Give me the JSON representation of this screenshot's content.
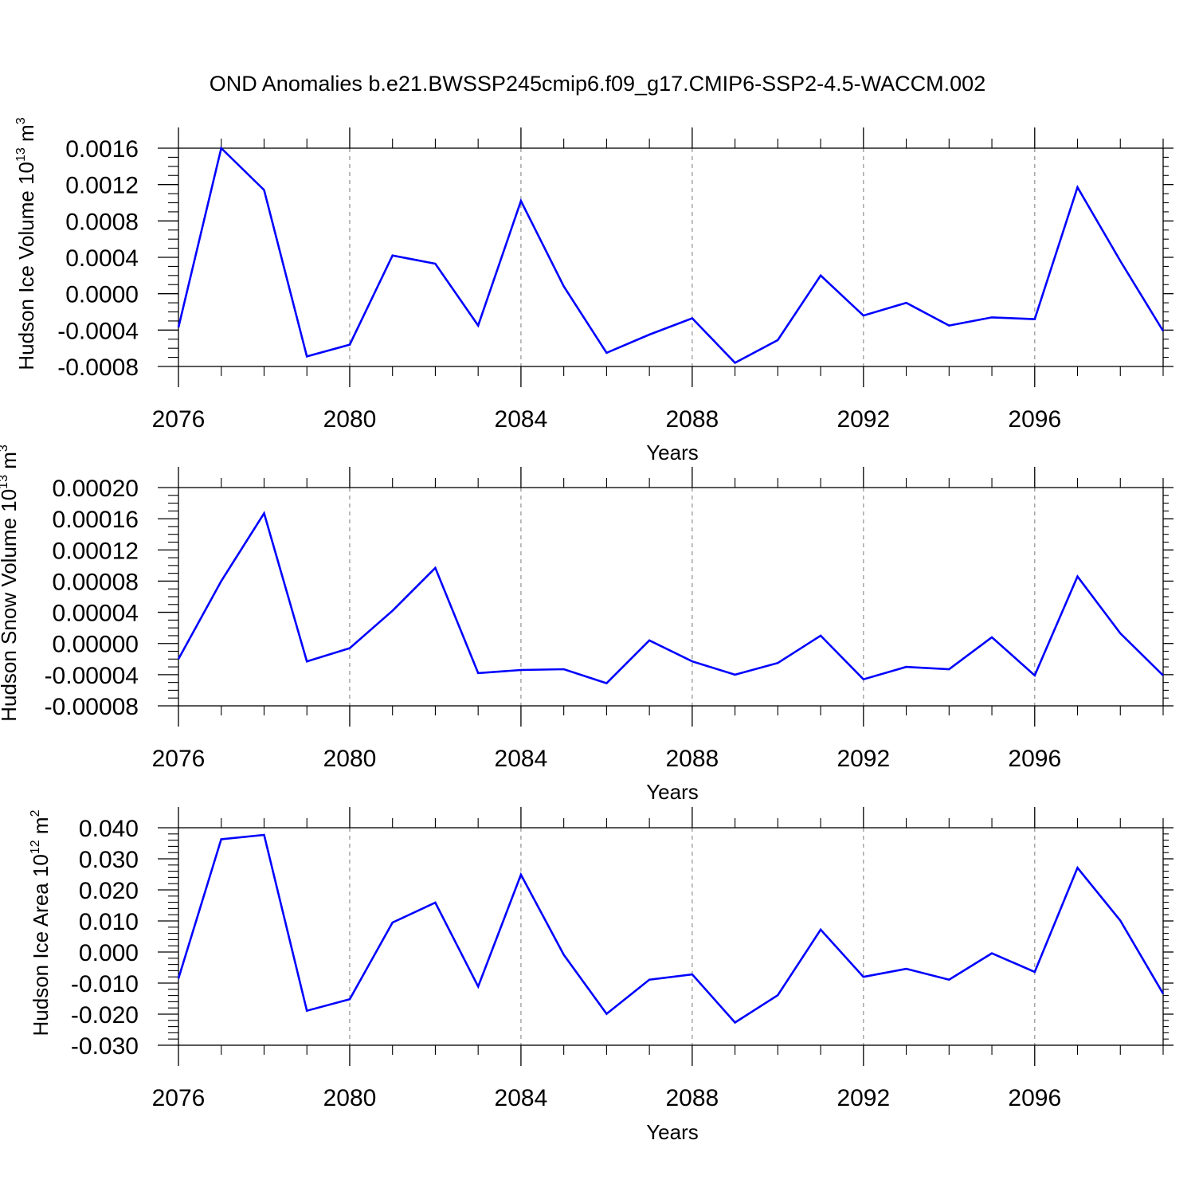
{
  "title": "OND Anomalies b.e21.BWSSP245cmip6.f09_g17.CMIP6-SSP2-4.5-WACCM.002",
  "chart_data": [
    {
      "type": "line",
      "ylabel_text": "Hudson Ice Volume 10",
      "ylabel_exp": "13",
      "ylabel_unit": " m",
      "ylabel_unit_exp": "3",
      "xlabel": "Years",
      "xlim": [
        2076,
        2099
      ],
      "ylim": [
        -0.0008,
        0.0016
      ],
      "xticks": [
        "2076",
        "2080",
        "2084",
        "2088",
        "2092",
        "2096"
      ],
      "yticks": [
        "0.0016",
        "0.0012",
        "0.0008",
        "0.0004",
        "0.0000",
        "-0.0004",
        "-0.0008"
      ],
      "line_color": "#0000ff",
      "grid": "dashed vertical at major x ticks",
      "x": [
        2076,
        2077,
        2078,
        2079,
        2080,
        2081,
        2082,
        2083,
        2084,
        2085,
        2086,
        2087,
        2088,
        2089,
        2090,
        2091,
        2092,
        2093,
        2094,
        2095,
        2096,
        2097,
        2098,
        2099
      ],
      "values": [
        -0.00037,
        0.0016,
        0.00114,
        -0.00069,
        -0.00056,
        0.00042,
        0.00033,
        -0.00035,
        0.00102,
        8e-05,
        -0.00065,
        -0.00045,
        -0.00027,
        -0.00076,
        -0.00051,
        0.0002,
        -0.00024,
        -0.0001,
        -0.00035,
        -0.00026,
        -0.00028,
        0.00117,
        0.00036,
        -0.00041
      ]
    },
    {
      "type": "line",
      "ylabel_text": "Hudson Snow Volume 10",
      "ylabel_exp": "13",
      "ylabel_unit": " m",
      "ylabel_unit_exp": "3",
      "xlabel": "Years",
      "xlim": [
        2076,
        2099
      ],
      "ylim": [
        -8e-05,
        0.0002
      ],
      "xticks": [
        "2076",
        "2080",
        "2084",
        "2088",
        "2092",
        "2096"
      ],
      "yticks": [
        "0.00020",
        "0.00016",
        "0.00012",
        "0.00008",
        "0.00004",
        "0.00000",
        "-0.00004",
        "-0.00008"
      ],
      "line_color": "#0000ff",
      "grid": "dashed vertical at major x ticks",
      "x": [
        2076,
        2077,
        2078,
        2079,
        2080,
        2081,
        2082,
        2083,
        2084,
        2085,
        2086,
        2087,
        2088,
        2089,
        2090,
        2091,
        2092,
        2093,
        2094,
        2095,
        2096,
        2097,
        2098,
        2099
      ],
      "values": [
        -2e-05,
        8e-05,
        0.000167,
        -2.3e-05,
        -6e-06,
        4.2e-05,
        9.7e-05,
        -3.8e-05,
        -3.4e-05,
        -3.3e-05,
        -5.1e-05,
        4e-06,
        -2.3e-05,
        -4e-05,
        -2.5e-05,
        1e-05,
        -4.6e-05,
        -3e-05,
        -3.3e-05,
        8e-06,
        -4.1e-05,
        8.6e-05,
        1.3e-05,
        -4.1e-05
      ]
    },
    {
      "type": "line",
      "ylabel_text": "Hudson Ice Area 10",
      "ylabel_exp": "12",
      "ylabel_unit": " m",
      "ylabel_unit_exp": "2",
      "xlabel": "Years",
      "xlim": [
        2076,
        2099
      ],
      "ylim": [
        -0.03,
        0.04
      ],
      "xticks": [
        "2076",
        "2080",
        "2084",
        "2088",
        "2092",
        "2096"
      ],
      "yticks": [
        "0.040",
        "0.030",
        "0.020",
        "0.010",
        "0.000",
        "-0.010",
        "-0.020",
        "-0.030"
      ],
      "line_color": "#0000ff",
      "grid": "dashed vertical at major x ticks",
      "x": [
        2076,
        2077,
        2078,
        2079,
        2080,
        2081,
        2082,
        2083,
        2084,
        2085,
        2086,
        2087,
        2088,
        2089,
        2090,
        2091,
        2092,
        2093,
        2094,
        2095,
        2096,
        2097,
        2098,
        2099
      ],
      "values": [
        -0.0085,
        0.0363,
        0.0377,
        -0.0189,
        -0.0152,
        0.0095,
        0.0159,
        -0.0111,
        0.0249,
        -0.0009,
        -0.0199,
        -0.0089,
        -0.0072,
        -0.0227,
        -0.0139,
        0.0072,
        -0.008,
        -0.0054,
        -0.0089,
        -0.0004,
        -0.0064,
        0.0271,
        0.0101,
        -0.0134
      ]
    }
  ]
}
